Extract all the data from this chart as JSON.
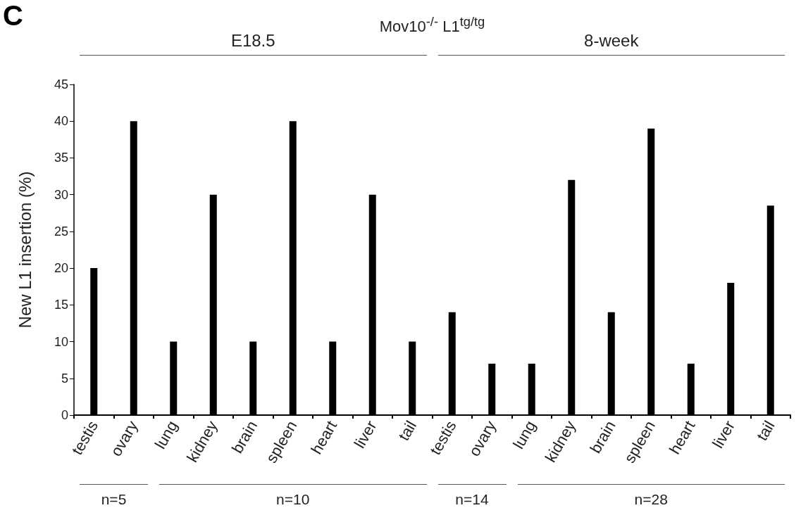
{
  "chart_data": {
    "type": "bar",
    "title": "Mov10$^{-/-}$ L1$^{tg/tg}$",
    "ylabel": "New L1 insertion (%)",
    "categories": [
      "testis",
      "ovary",
      "lung",
      "kidney",
      "brain",
      "spleen",
      "heart",
      "liver",
      "tail",
      "testis",
      "ovary",
      "lung",
      "kidney",
      "brain",
      "spleen",
      "heart",
      "liver",
      "tail"
    ],
    "values": [
      20,
      40,
      10,
      30,
      10,
      40,
      10,
      30,
      10,
      14,
      7,
      7,
      32,
      14,
      39,
      7,
      18,
      28.5
    ],
    "color": "#000000",
    "ylim": [
      0,
      45
    ],
    "yticks": [
      0,
      5,
      10,
      15,
      20,
      25,
      30,
      35,
      40,
      45
    ],
    "grid": false,
    "annotations": [
      "C",
      "E18.5",
      "8-week",
      "n=5",
      "n=10",
      "n=14",
      "n=28"
    ]
  }
}
